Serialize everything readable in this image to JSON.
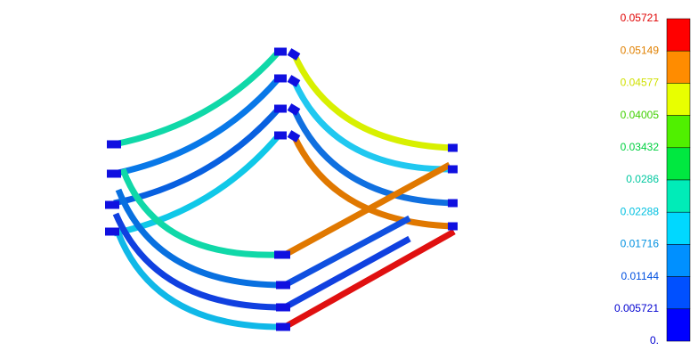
{
  "legend": {
    "labels": [
      {
        "text": "0.05721",
        "color": "#e00000"
      },
      {
        "text": "0.05149",
        "color": "#e08000"
      },
      {
        "text": "0.04577",
        "color": "#d0e000"
      },
      {
        "text": "0.04005",
        "color": "#40d000"
      },
      {
        "text": "0.03432",
        "color": "#00d040"
      },
      {
        "text": "0.0286",
        "color": "#00c8a0"
      },
      {
        "text": "0.02288",
        "color": "#00c0e0"
      },
      {
        "text": "0.01716",
        "color": "#0090e0"
      },
      {
        "text": "0.01144",
        "color": "#0050e0"
      },
      {
        "text": "0.005721",
        "color": "#0000d0"
      },
      {
        "text": "0.",
        "color": "#0000d0"
      }
    ],
    "bands": [
      "#ff0000",
      "#ff8c00",
      "#e8ff00",
      "#50f000",
      "#00e840",
      "#00ecb8",
      "#00d8ff",
      "#0090ff",
      "#0050ff",
      "#0000ff"
    ]
  }
}
